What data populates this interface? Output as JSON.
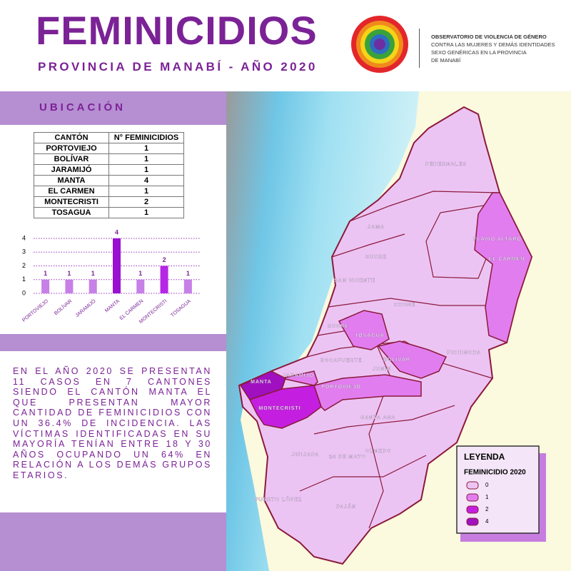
{
  "header": {
    "title": "FEMINICIDIOS",
    "subtitle": "PROVINCIA DE MANABÍ - AÑO 2020",
    "org": [
      "OBSERVATORIO DE VIOLENCIA DE GÉNERO",
      "CONTRA LAS MUJERES Y DEMÁS IDENTIDADES",
      "SEXO GENÉRICAS EN LA PROVINCIA",
      "DE MANABÍ"
    ]
  },
  "section": "UBICACIÓN",
  "table": {
    "header": [
      "CANTÓN",
      "N° FEMINICIDIOS"
    ],
    "rows": [
      [
        "PORTOVIEJO",
        1
      ],
      [
        "BOLÍVAR",
        1
      ],
      [
        "JARAMIJÓ",
        1
      ],
      [
        "MANTA",
        4
      ],
      [
        "EL CARMEN",
        1
      ],
      [
        "MONTECRISTI",
        2
      ],
      [
        "TOSAGUA",
        1
      ]
    ]
  },
  "chart_data": {
    "type": "bar",
    "categories": [
      "PORTOVIEJO",
      "BOLÍVAR",
      "JARAMIJÓ",
      "MANTA",
      "EL CARMEN",
      "MONTECRISTI",
      "TOSAGUA"
    ],
    "values": [
      1,
      1,
      1,
      4,
      1,
      2,
      1
    ],
    "colors": [
      "#c680e6",
      "#c680e6",
      "#c680e6",
      "#9a10d0",
      "#c680e6",
      "#b526e6",
      "#c680e6"
    ],
    "ylim": [
      0,
      4
    ],
    "yticks": [
      0,
      1,
      2,
      3,
      4
    ],
    "grid": true
  },
  "text": "EN EL AÑO 2020 SE PRESENTAN 11 CASOS EN 7 CANTONES SIENDO EL CANTÓN MANTA EL QUE PRESENTAN MAYOR CANTIDAD DE FEMINICIDIOS CON UN 36.4% DE INCIDENCIA. LAS VÍCTIMAS IDENTIFICADAS EN SU MAYORÍA TENÍAN ENTRE 18 Y 30 AÑOS OCUPANDO UN 64% EN RELACIÓN A LOS DEMÁS GRUPOS ETARIOS.",
  "map": {
    "labels": [
      "PEDERNALES",
      "JAMA",
      "FLAVIO ALTARO",
      "EL CARMEN",
      "SUCRE",
      "SAN VICENTE",
      "CHONE",
      "SUCRE",
      "TOSAGUA",
      "BOLÍVAR",
      "PICHINCHA",
      "ROCAFUERTE",
      "JUNÍN",
      "MANTA",
      "JARAMIJÓ",
      "PORTOVIEJO",
      "MONTECRISTI",
      "SANTA ANA",
      "JIPIJAPA",
      "24 DE MAYO",
      "OLMEDO",
      "PUERTO LÓPEZ",
      "PAJÁN"
    ]
  },
  "legend": {
    "title": "LEYENDA",
    "subtitle": "FEMINICIDIO 2020",
    "items": [
      {
        "label": "0",
        "color": "#ecc4f4"
      },
      {
        "label": "1",
        "color": "#e27df0"
      },
      {
        "label": "2",
        "color": "#c41fe0"
      },
      {
        "label": "4",
        "color": "#a010c0"
      }
    ]
  }
}
